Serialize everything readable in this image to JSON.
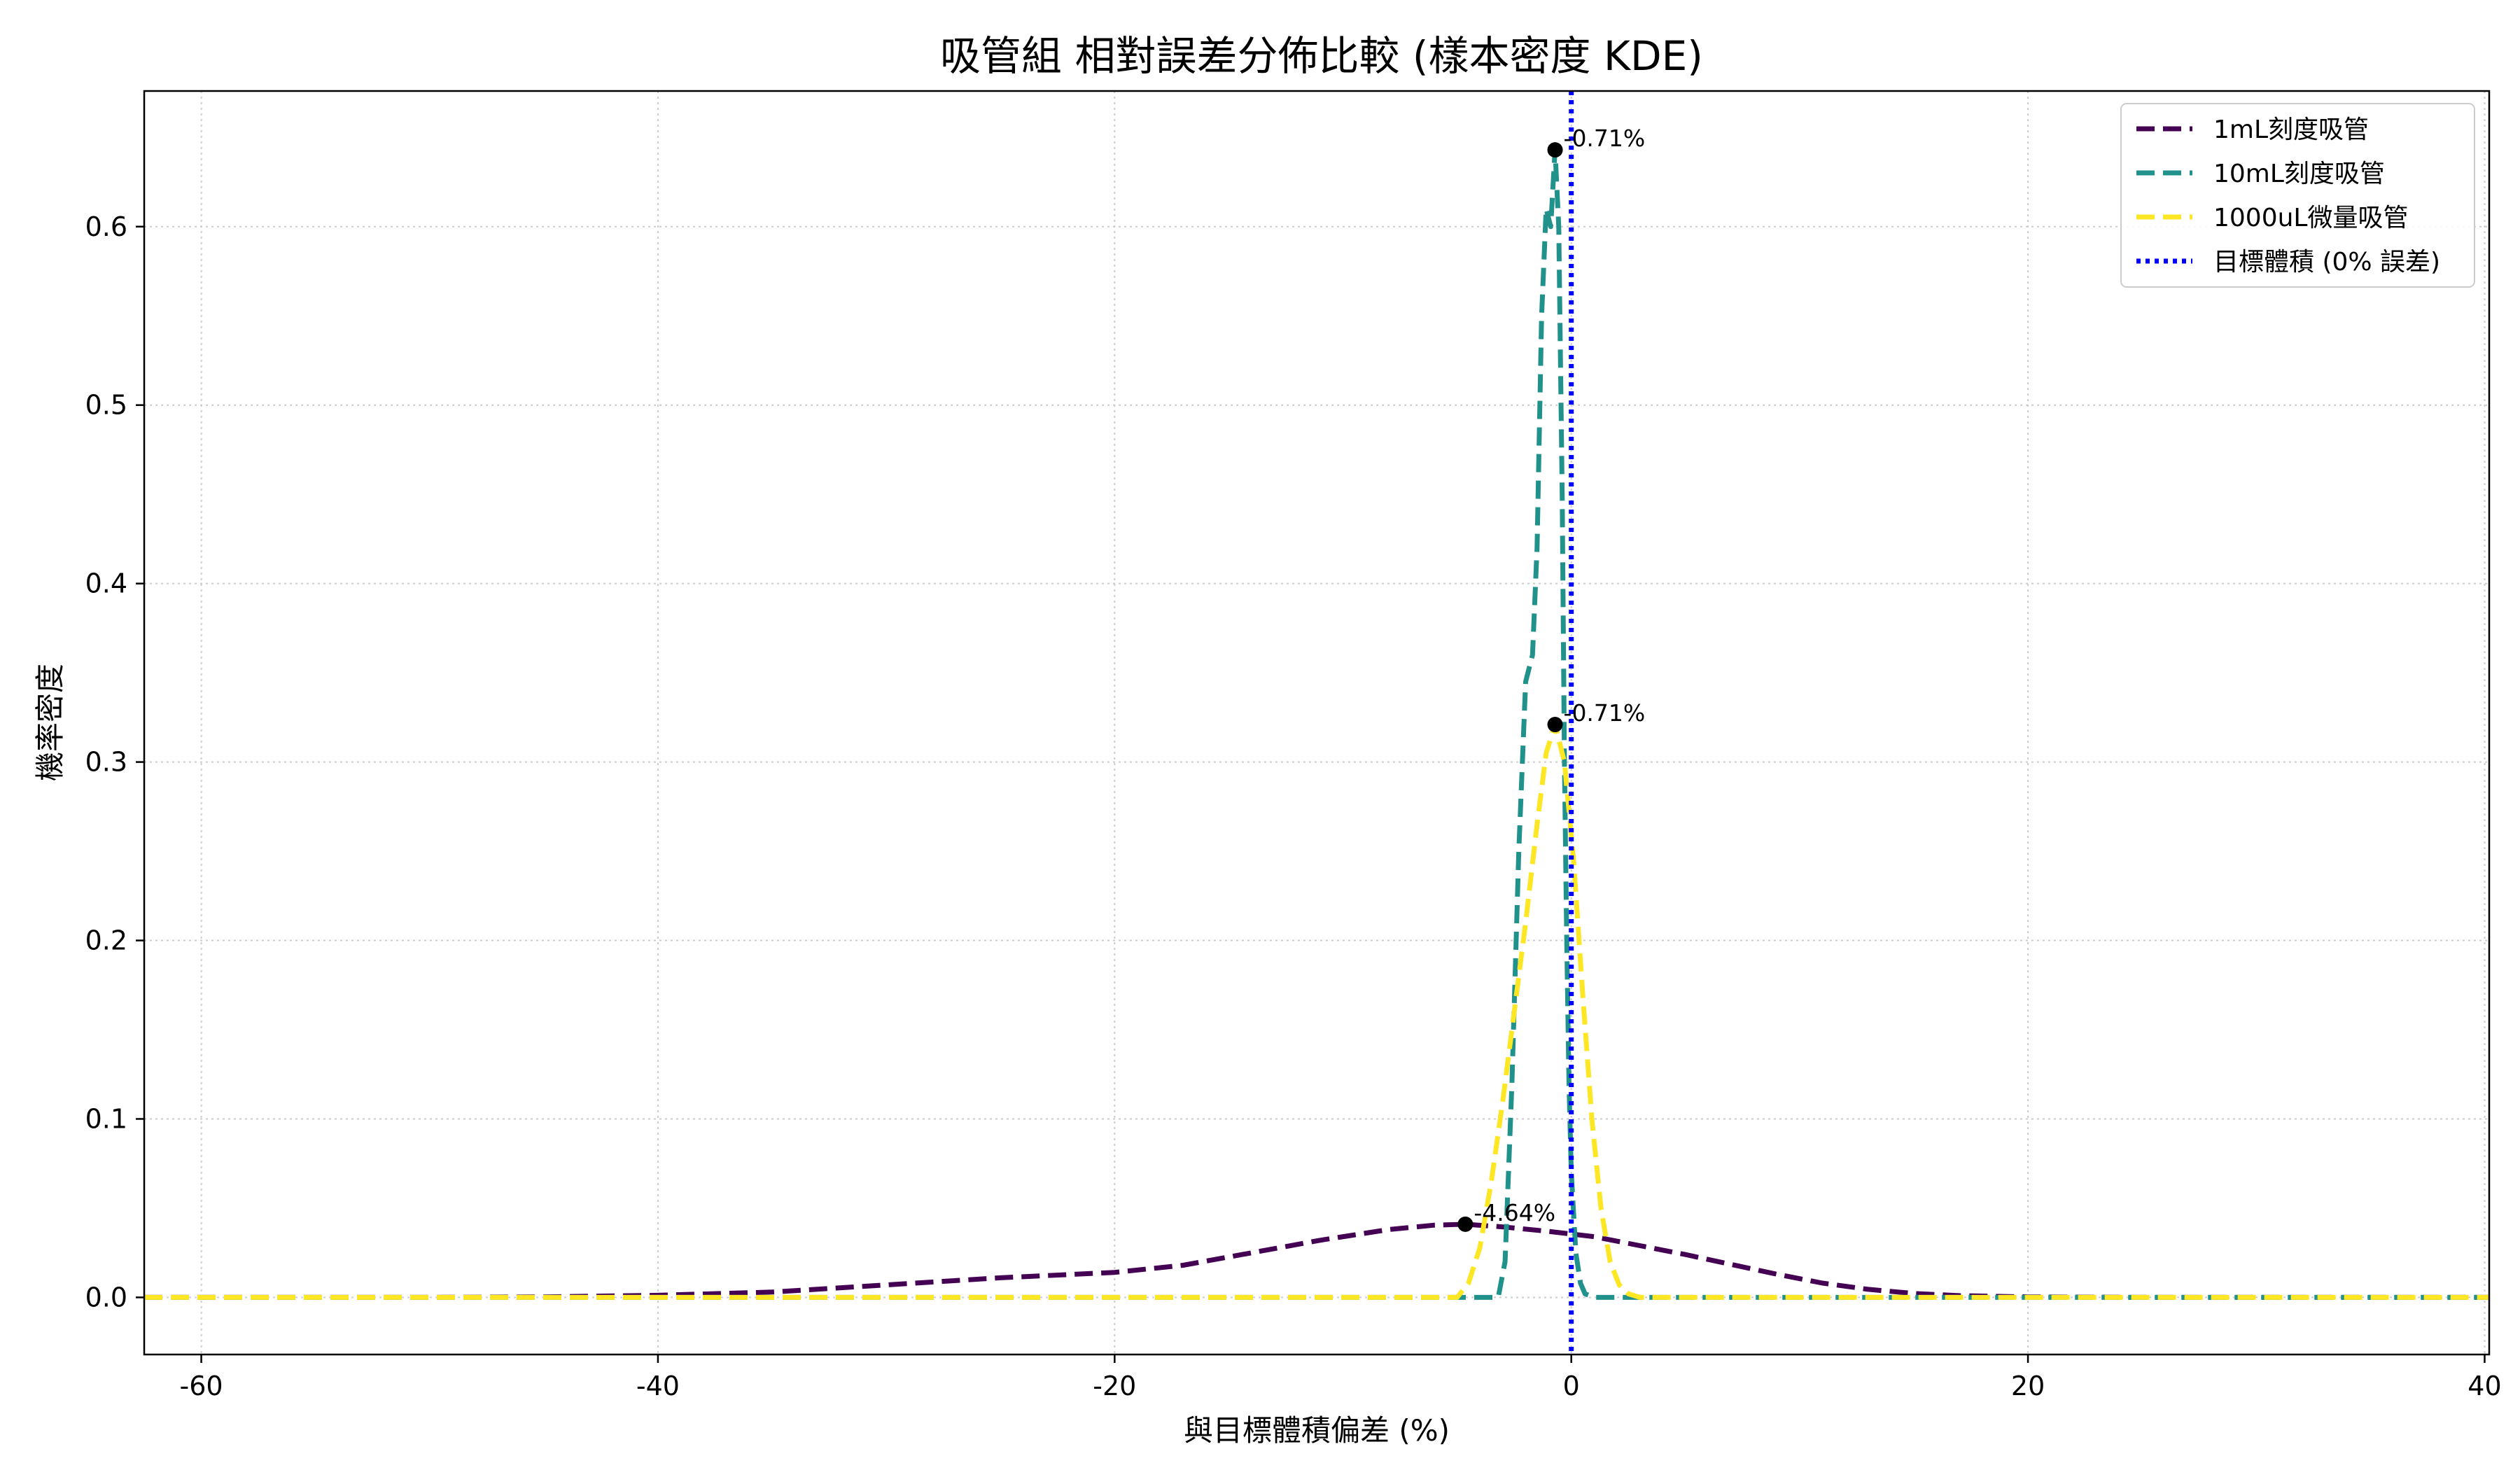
{
  "chart_data": {
    "type": "line",
    "title": "吸管組 相對誤差分佈比較 (樣本密度 KDE)",
    "xlabel": "與目標體積偏差 (%)",
    "ylabel": "機率密度",
    "xlim": [
      -62.5,
      40.2
    ],
    "ylim": [
      -0.032,
      0.676
    ],
    "xticks": [
      -60,
      -40,
      -20,
      0,
      20,
      40
    ],
    "xtick_labels": [
      "-60",
      "-40",
      "-20",
      "0",
      "20",
      "40"
    ],
    "yticks": [
      0.0,
      0.1,
      0.2,
      0.3,
      0.4,
      0.5,
      0.6
    ],
    "ytick_labels": [
      "0.0",
      "0.1",
      "0.2",
      "0.3",
      "0.4",
      "0.5",
      "0.6"
    ],
    "grid": true,
    "legend_position": "top-right",
    "series": [
      {
        "name": "1mL刻度吸管",
        "color": "#440154",
        "style": "dashed",
        "x": [
          -62.5,
          -50,
          -45,
          -40,
          -35,
          -30,
          -25,
          -20,
          -17,
          -14,
          -11,
          -8,
          -6,
          -4.64,
          -3,
          -1,
          1,
          3,
          5,
          7,
          9,
          11,
          13,
          15,
          17,
          20,
          25,
          30,
          40.2
        ],
        "y": [
          0.0,
          0.0,
          0.0003,
          0.0012,
          0.003,
          0.007,
          0.011,
          0.014,
          0.018,
          0.025,
          0.032,
          0.038,
          0.0405,
          0.041,
          0.0395,
          0.037,
          0.034,
          0.029,
          0.024,
          0.0185,
          0.013,
          0.008,
          0.0045,
          0.0022,
          0.001,
          0.0003,
          0.0,
          0.0,
          0.0
        ]
      },
      {
        "name": "10mL刻度吸管",
        "color": "#21918c",
        "style": "dashed",
        "x": [
          -62.5,
          -5,
          -3.2,
          -2.9,
          -2.6,
          -2.3,
          -2.0,
          -1.7,
          -1.5,
          -1.3,
          -1.1,
          -0.9,
          -0.71,
          -0.55,
          -0.4,
          -0.3,
          -0.2,
          -0.1,
          0.0,
          0.2,
          0.4,
          0.6,
          1.0,
          40.2
        ],
        "y": [
          0.0,
          0.0,
          0.0,
          0.02,
          0.12,
          0.25,
          0.345,
          0.36,
          0.42,
          0.55,
          0.61,
          0.6,
          0.643,
          0.6,
          0.45,
          0.3,
          0.2,
          0.12,
          0.07,
          0.025,
          0.008,
          0.002,
          0.0,
          0.0
        ]
      },
      {
        "name": "1000uL微量吸管",
        "color": "#fde725",
        "style": "dashed",
        "x": [
          -62.5,
          -6,
          -5,
          -4.5,
          -4,
          -3.5,
          -3,
          -2.5,
          -2,
          -1.5,
          -1.1,
          -0.71,
          -0.3,
          0.1,
          0.5,
          0.9,
          1.3,
          1.7,
          2.1,
          2.5,
          3,
          40.2
        ],
        "y": [
          0.0,
          0.0,
          0.0,
          0.008,
          0.028,
          0.065,
          0.11,
          0.16,
          0.21,
          0.265,
          0.305,
          0.321,
          0.3,
          0.245,
          0.17,
          0.1,
          0.05,
          0.02,
          0.007,
          0.002,
          0.0,
          0.0
        ]
      },
      {
        "name": "目標體積 (0% 誤差)",
        "color": "#0000ff",
        "style": "dotted",
        "type": "vline",
        "x": 0
      }
    ],
    "annotations": [
      {
        "x": -0.71,
        "y": 0.643,
        "text": "-0.71%"
      },
      {
        "x": -0.71,
        "y": 0.321,
        "text": "-0.71%"
      },
      {
        "x": -4.64,
        "y": 0.041,
        "text": "-4.64%"
      }
    ]
  }
}
